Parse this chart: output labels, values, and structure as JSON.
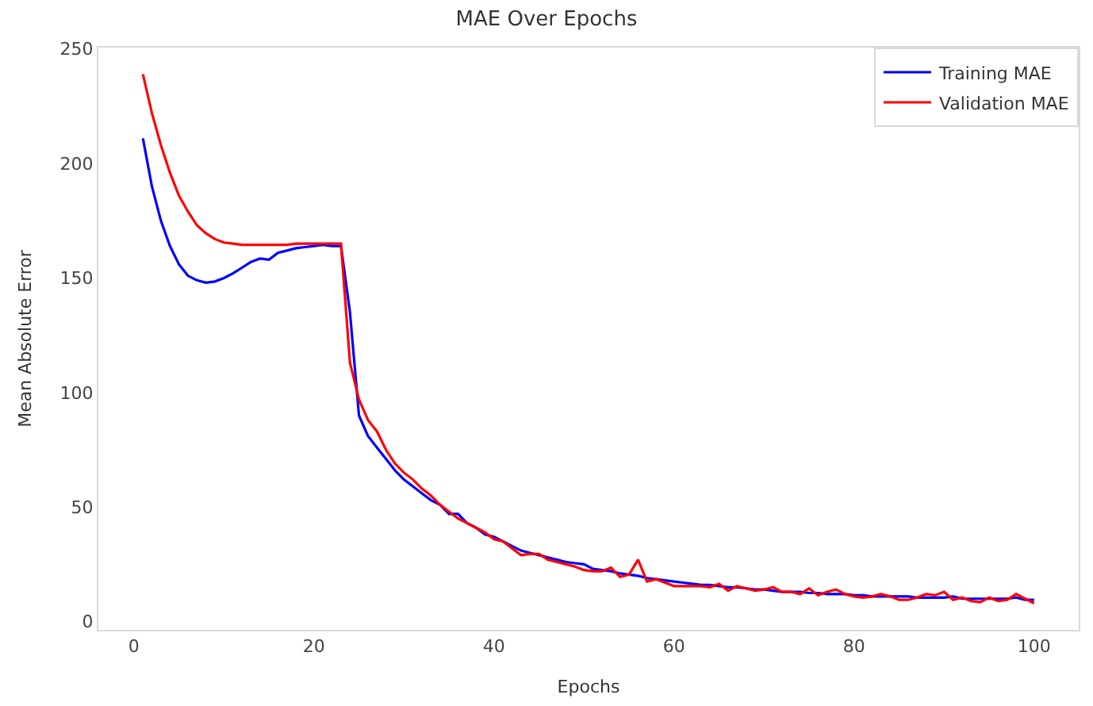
{
  "chart_data": {
    "type": "line",
    "title": "MAE Over Epochs",
    "xlabel": "Epochs",
    "ylabel": "Mean Absolute Error",
    "x": [
      1,
      2,
      3,
      4,
      5,
      6,
      7,
      8,
      9,
      10,
      11,
      12,
      13,
      14,
      15,
      16,
      17,
      18,
      19,
      20,
      21,
      22,
      23,
      24,
      25,
      26,
      27,
      28,
      29,
      30,
      31,
      32,
      33,
      34,
      35,
      36,
      37,
      38,
      39,
      40,
      41,
      42,
      43,
      44,
      45,
      46,
      47,
      48,
      49,
      50,
      51,
      52,
      53,
      54,
      55,
      56,
      57,
      58,
      59,
      60,
      61,
      62,
      63,
      64,
      65,
      66,
      67,
      68,
      69,
      70,
      71,
      72,
      73,
      74,
      75,
      76,
      77,
      78,
      79,
      80,
      81,
      82,
      83,
      84,
      85,
      86,
      87,
      88,
      89,
      90,
      91,
      92,
      93,
      94,
      95,
      96,
      97,
      98,
      99,
      100
    ],
    "series": [
      {
        "name": "Training MAE",
        "color": "#0000ff",
        "values": [
          211,
          190,
          175,
          164,
          156,
          151,
          149,
          148,
          148.5,
          150,
          152,
          154.5,
          157,
          158.5,
          158,
          161,
          162,
          163,
          163.5,
          164,
          164.5,
          164,
          164,
          135,
          90,
          81,
          76,
          71,
          66,
          62,
          59,
          56,
          53,
          51,
          47,
          47,
          43,
          41,
          38,
          37,
          35,
          33,
          31,
          30,
          29,
          28,
          27,
          26,
          25.5,
          25,
          23,
          22.5,
          22,
          21,
          20.5,
          20,
          19,
          18.5,
          18,
          17.5,
          17,
          16.5,
          16,
          16,
          15.5,
          15,
          15,
          14.5,
          14,
          14,
          13.5,
          13,
          13,
          13,
          12.5,
          12.5,
          12,
          12,
          12,
          11.5,
          11.5,
          11,
          11,
          11,
          11,
          11,
          10.5,
          10.5,
          10.5,
          10.5,
          11,
          10,
          10,
          10,
          10,
          10,
          10,
          10.5,
          9.5,
          9.5
        ]
      },
      {
        "name": "Validation MAE",
        "color": "#ff0000",
        "values": [
          239,
          222,
          208,
          196,
          186,
          179,
          173,
          169.5,
          167,
          165.5,
          165,
          164.5,
          164.5,
          164.5,
          164.5,
          164.5,
          164.5,
          165,
          165,
          165,
          165,
          165,
          165,
          113,
          97,
          88,
          83,
          75,
          69,
          65,
          62,
          58,
          55,
          51,
          48,
          45,
          43,
          41,
          39,
          36,
          35,
          32,
          29,
          29.5,
          29.5,
          27,
          26,
          25,
          24,
          22.5,
          22,
          22,
          23.5,
          19.5,
          20.5,
          27,
          17.5,
          18.5,
          17,
          15.5,
          15.5,
          15.5,
          15.5,
          15,
          16.5,
          13.5,
          15.5,
          14.5,
          13.5,
          14,
          15,
          13,
          13,
          12,
          14.5,
          11.5,
          13,
          14,
          12,
          11,
          10.5,
          11,
          12,
          11,
          9.5,
          9.5,
          10.5,
          12,
          11.5,
          13,
          9.5,
          10.5,
          9,
          8.5,
          10.5,
          9,
          9.5,
          12,
          10,
          8
        ]
      }
    ],
    "xlim": [
      -3.95,
      104.95
    ],
    "xticks": [
      0,
      20,
      40,
      60,
      80,
      100
    ],
    "ylim": [
      -3.6,
      250.6
    ],
    "yticks": [
      0,
      50,
      100,
      150,
      200,
      250
    ],
    "legend": "top right",
    "marker": "none",
    "line_style": "solid"
  }
}
